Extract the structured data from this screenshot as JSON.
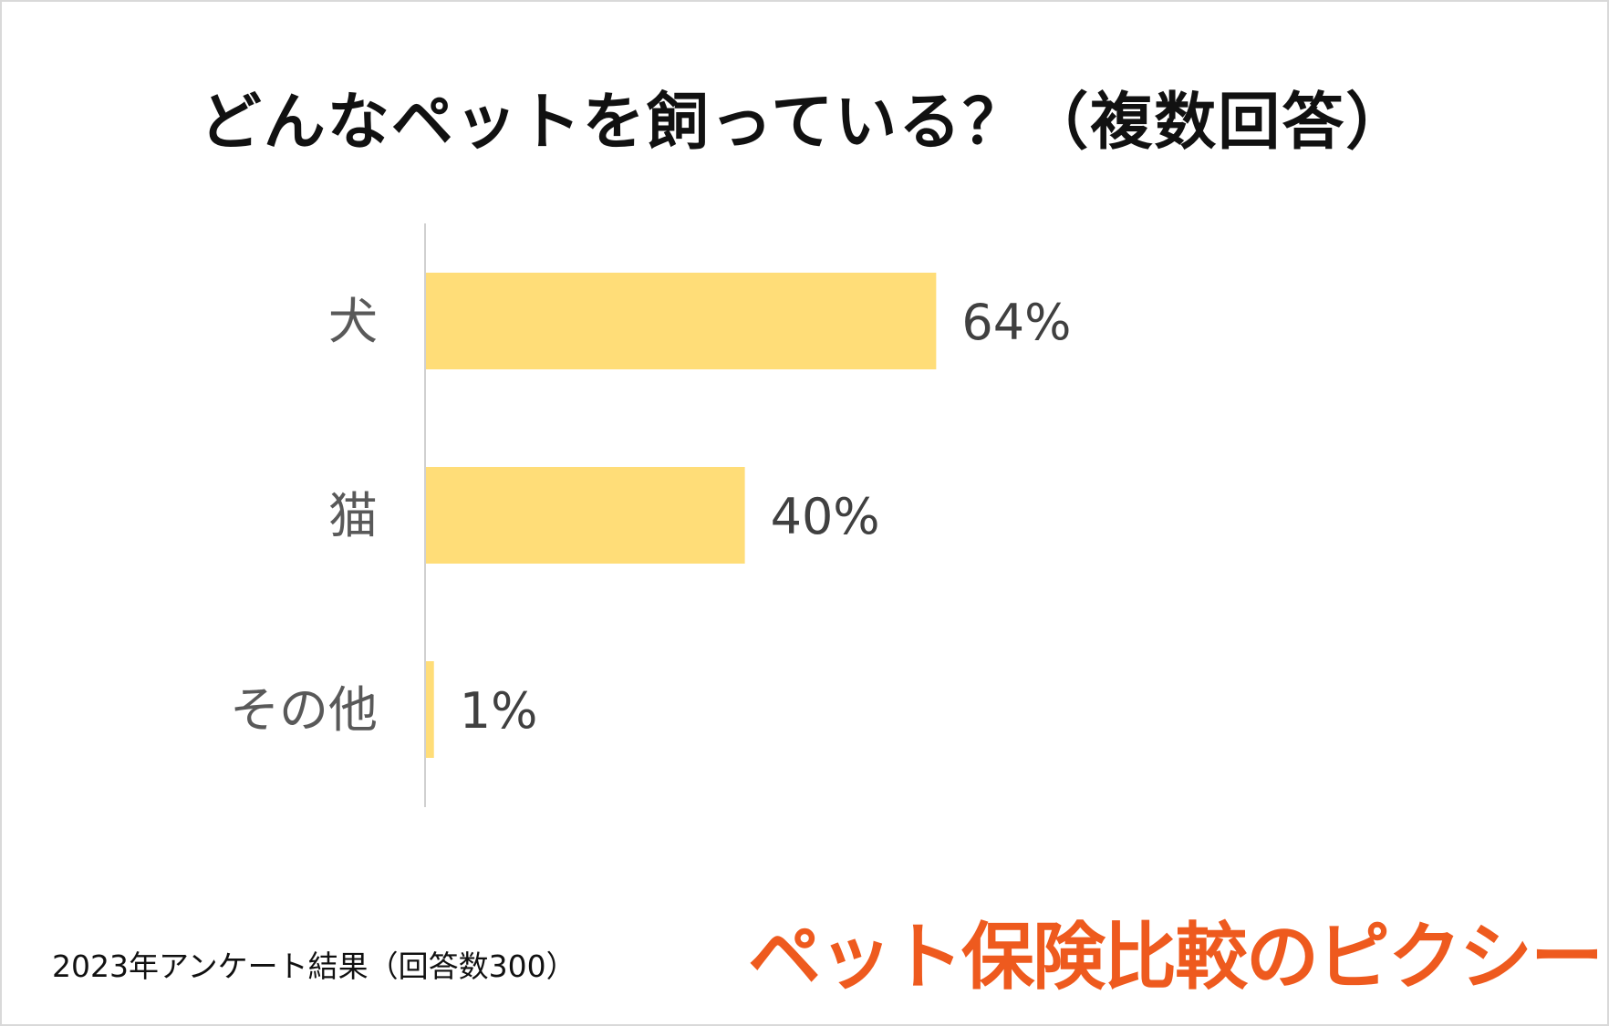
{
  "title": "どんなペットを飼っている？（複数回答）",
  "chart_data": {
    "type": "bar",
    "orientation": "horizontal",
    "categories": [
      "犬",
      "猫",
      "その他"
    ],
    "values": [
      64,
      40,
      1
    ],
    "data_labels": [
      "64%",
      "40%",
      "1%"
    ],
    "unit": "%",
    "xlim": [
      0,
      100
    ],
    "grid": false,
    "legend": "none",
    "bar_color": "#ffdd78"
  },
  "footnote": "2023年アンケート結果（回答数300）",
  "brand": "ペット保険比較のピクシー",
  "colors": {
    "bar": "#ffdd78",
    "brand": "#ee5a1e",
    "axis_label": "#595959",
    "value_label": "#404040"
  }
}
